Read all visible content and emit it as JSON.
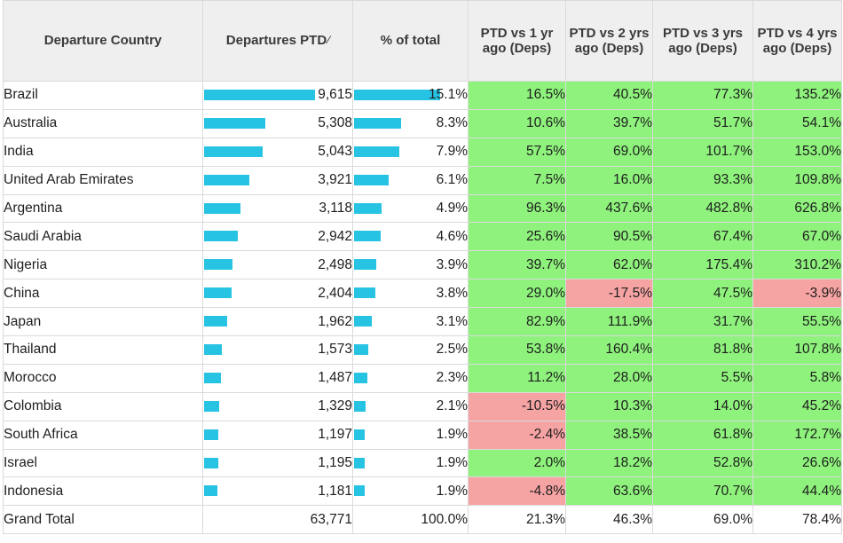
{
  "headers": {
    "country": "Departure Country",
    "departures": "Departures PTD",
    "share": "% of total",
    "vs1": "PTD vs 1 yr ago (Deps)",
    "vs2": "PTD vs 2 yrs ago (Deps)",
    "vs3": "PTD vs 3 yrs ago (Deps)",
    "vs4": "PTD vs 4 yrs ago (Deps)"
  },
  "colors": {
    "bar": "#27c3e3",
    "positive": "#8ef27c",
    "negative": "#f6a3a3"
  },
  "max_departures": 9615,
  "max_share": 15.1,
  "rows": [
    {
      "country": "Brazil",
      "departures": "9,615",
      "dep_value": 9615,
      "share": "15.1%",
      "share_value": 15.1,
      "vs1": "16.5%",
      "vs2": "40.5%",
      "vs3": "77.3%",
      "vs4": "135.2%"
    },
    {
      "country": "Australia",
      "departures": "5,308",
      "dep_value": 5308,
      "share": "8.3%",
      "share_value": 8.3,
      "vs1": "10.6%",
      "vs2": "39.7%",
      "vs3": "51.7%",
      "vs4": "54.1%"
    },
    {
      "country": "India",
      "departures": "5,043",
      "dep_value": 5043,
      "share": "7.9%",
      "share_value": 7.9,
      "vs1": "57.5%",
      "vs2": "69.0%",
      "vs3": "101.7%",
      "vs4": "153.0%"
    },
    {
      "country": "United Arab Emirates",
      "departures": "3,921",
      "dep_value": 3921,
      "share": "6.1%",
      "share_value": 6.1,
      "vs1": "7.5%",
      "vs2": "16.0%",
      "vs3": "93.3%",
      "vs4": "109.8%"
    },
    {
      "country": "Argentina",
      "departures": "3,118",
      "dep_value": 3118,
      "share": "4.9%",
      "share_value": 4.9,
      "vs1": "96.3%",
      "vs2": "437.6%",
      "vs3": "482.8%",
      "vs4": "626.8%"
    },
    {
      "country": "Saudi Arabia",
      "departures": "2,942",
      "dep_value": 2942,
      "share": "4.6%",
      "share_value": 4.6,
      "vs1": "25.6%",
      "vs2": "90.5%",
      "vs3": "67.4%",
      "vs4": "67.0%"
    },
    {
      "country": "Nigeria",
      "departures": "2,498",
      "dep_value": 2498,
      "share": "3.9%",
      "share_value": 3.9,
      "vs1": "39.7%",
      "vs2": "62.0%",
      "vs3": "175.4%",
      "vs4": "310.2%"
    },
    {
      "country": "China",
      "departures": "2,404",
      "dep_value": 2404,
      "share": "3.8%",
      "share_value": 3.8,
      "vs1": "29.0%",
      "vs2": "-17.5%",
      "vs3": "47.5%",
      "vs4": "-3.9%"
    },
    {
      "country": "Japan",
      "departures": "1,962",
      "dep_value": 1962,
      "share": "3.1%",
      "share_value": 3.1,
      "vs1": "82.9%",
      "vs2": "111.9%",
      "vs3": "31.7%",
      "vs4": "55.5%"
    },
    {
      "country": "Thailand",
      "departures": "1,573",
      "dep_value": 1573,
      "share": "2.5%",
      "share_value": 2.5,
      "vs1": "53.8%",
      "vs2": "160.4%",
      "vs3": "81.8%",
      "vs4": "107.8%"
    },
    {
      "country": "Morocco",
      "departures": "1,487",
      "dep_value": 1487,
      "share": "2.3%",
      "share_value": 2.3,
      "vs1": "11.2%",
      "vs2": "28.0%",
      "vs3": "5.5%",
      "vs4": "5.8%"
    },
    {
      "country": "Colombia",
      "departures": "1,329",
      "dep_value": 1329,
      "share": "2.1%",
      "share_value": 2.1,
      "vs1": "-10.5%",
      "vs2": "10.3%",
      "vs3": "14.0%",
      "vs4": "45.2%"
    },
    {
      "country": "South Africa",
      "departures": "1,197",
      "dep_value": 1197,
      "share": "1.9%",
      "share_value": 1.9,
      "vs1": "-2.4%",
      "vs2": "38.5%",
      "vs3": "61.8%",
      "vs4": "172.7%"
    },
    {
      "country": "Israel",
      "departures": "1,195",
      "dep_value": 1195,
      "share": "1.9%",
      "share_value": 1.9,
      "vs1": "2.0%",
      "vs2": "18.2%",
      "vs3": "52.8%",
      "vs4": "26.6%"
    },
    {
      "country": "Indonesia",
      "departures": "1,181",
      "dep_value": 1181,
      "share": "1.9%",
      "share_value": 1.9,
      "vs1": "-4.8%",
      "vs2": "63.6%",
      "vs3": "70.7%",
      "vs4": "44.4%"
    }
  ],
  "total": {
    "label": "Grand Total",
    "departures": "63,771",
    "share": "100.0%",
    "vs1": "21.3%",
    "vs2": "46.3%",
    "vs3": "69.0%",
    "vs4": "78.4%"
  }
}
